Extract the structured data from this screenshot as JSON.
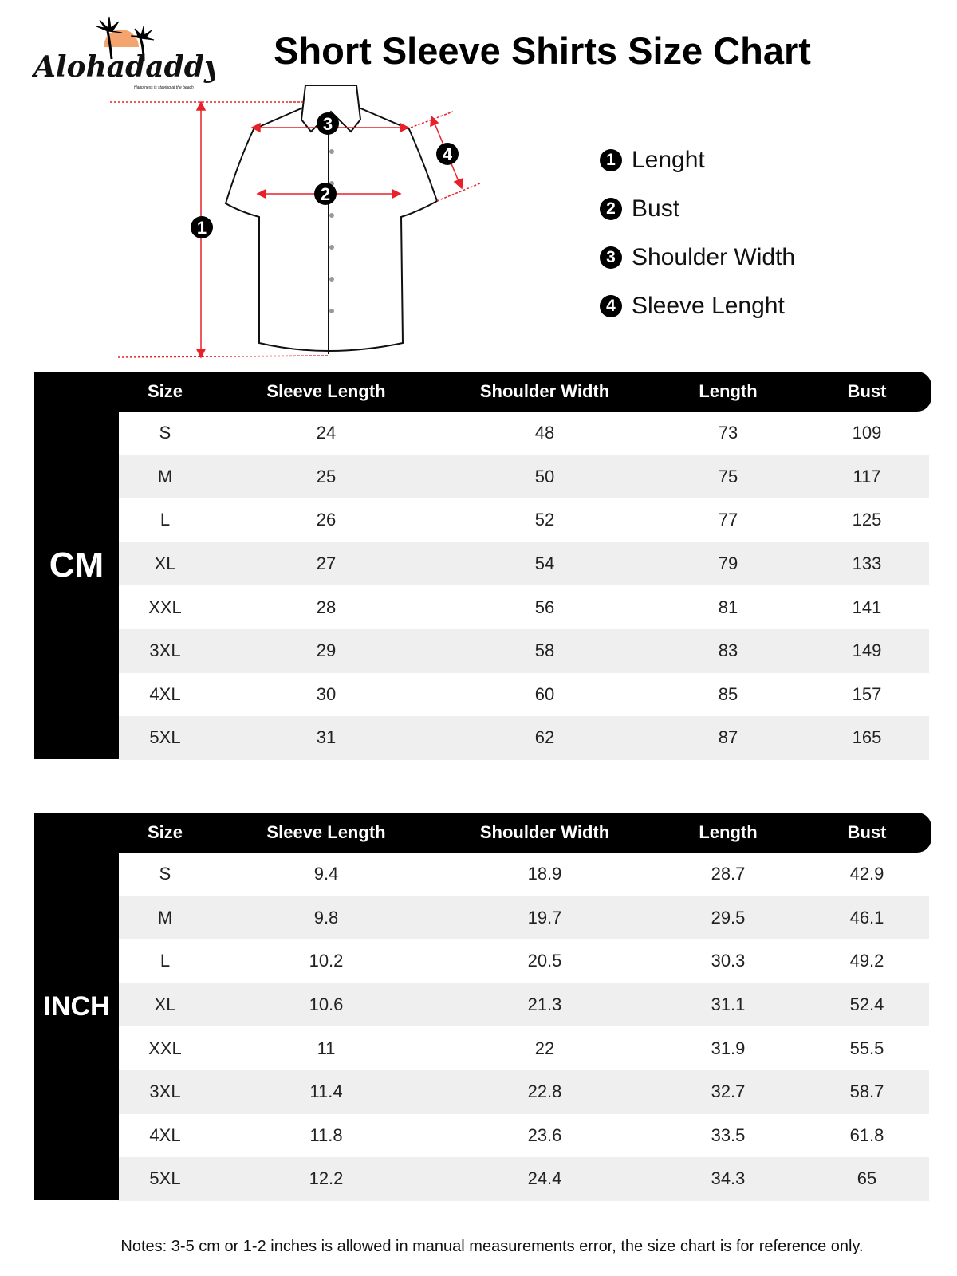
{
  "brand": {
    "name": "Alohadaddy",
    "tagline": "Happiness is staying at the beach"
  },
  "title": "Short Sleeve Shirts Size Chart",
  "diagram": {
    "markers": [
      "1",
      "2",
      "3",
      "4"
    ]
  },
  "legend": [
    {
      "num": "1",
      "label": "Lenght"
    },
    {
      "num": "2",
      "label": "Bust"
    },
    {
      "num": "3",
      "label": "Shoulder Width"
    },
    {
      "num": "4",
      "label": "Sleeve Lenght"
    }
  ],
  "columns": [
    "Size",
    "Sleeve Length",
    "Shoulder Width",
    "Length",
    "Bust"
  ],
  "tables": [
    {
      "unit": "CM",
      "rows": [
        [
          "S",
          "24",
          "48",
          "73",
          "109"
        ],
        [
          "M",
          "25",
          "50",
          "75",
          "117"
        ],
        [
          "L",
          "26",
          "52",
          "77",
          "125"
        ],
        [
          "XL",
          "27",
          "54",
          "79",
          "133"
        ],
        [
          "XXL",
          "28",
          "56",
          "81",
          "141"
        ],
        [
          "3XL",
          "29",
          "58",
          "83",
          "149"
        ],
        [
          "4XL",
          "30",
          "60",
          "85",
          "157"
        ],
        [
          "5XL",
          "31",
          "62",
          "87",
          "165"
        ]
      ]
    },
    {
      "unit": "INCH",
      "rows": [
        [
          "S",
          "9.4",
          "18.9",
          "28.7",
          "42.9"
        ],
        [
          "M",
          "9.8",
          "19.7",
          "29.5",
          "46.1"
        ],
        [
          "L",
          "10.2",
          "20.5",
          "30.3",
          "49.2"
        ],
        [
          "XL",
          "10.6",
          "21.3",
          "31.1",
          "52.4"
        ],
        [
          "XXL",
          "11",
          "22",
          "31.9",
          "55.5"
        ],
        [
          "3XL",
          "11.4",
          "22.8",
          "32.7",
          "58.7"
        ],
        [
          "4XL",
          "11.8",
          "23.6",
          "33.5",
          "61.8"
        ],
        [
          "5XL",
          "12.2",
          "24.4",
          "34.3",
          "65"
        ]
      ]
    }
  ],
  "notes": "Notes: 3-5 cm or 1-2 inches is allowed in manual measurements error, the size chart is for reference only.",
  "colors": {
    "accent": "#e8202a",
    "sun": "#f4a46f",
    "header": "#000000",
    "stripe": "#efefef"
  }
}
